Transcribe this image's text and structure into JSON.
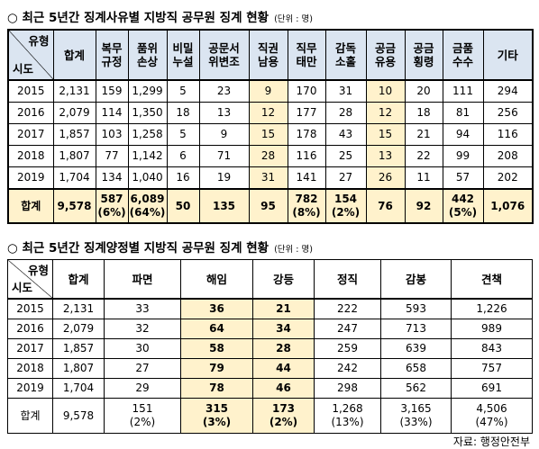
{
  "table1": {
    "title": "○ 최근 5년간 징계사유별 지방직 공무원 징계 현황",
    "unit": "(단위 : 명)",
    "corner": [
      "유형",
      "시도"
    ],
    "columns": [
      [
        "합계"
      ],
      [
        "복무",
        "규정"
      ],
      [
        "품위",
        "손상"
      ],
      [
        "비밀",
        "누설"
      ],
      [
        "공문서",
        "위변조"
      ],
      [
        "직권",
        "남용"
      ],
      [
        "직무",
        "태만"
      ],
      [
        "감독",
        "소홀"
      ],
      [
        "공금",
        "유용"
      ],
      [
        "공금",
        "횡령"
      ],
      [
        "금품",
        "수수"
      ],
      [
        "기타"
      ]
    ],
    "rows": [
      [
        "2015",
        "2,131",
        "159",
        "1,299",
        "5",
        "23",
        "9",
        "170",
        "31",
        "10",
        "20",
        "111",
        "294"
      ],
      [
        "2016",
        "2,079",
        "114",
        "1,350",
        "18",
        "13",
        "12",
        "177",
        "28",
        "12",
        "18",
        "81",
        "256"
      ],
      [
        "2017",
        "1,857",
        "103",
        "1,258",
        "5",
        "9",
        "15",
        "178",
        "43",
        "15",
        "21",
        "94",
        "116"
      ],
      [
        "2018",
        "1,807",
        "77",
        "1,142",
        "6",
        "71",
        "28",
        "116",
        "25",
        "13",
        "22",
        "99",
        "208"
      ],
      [
        "2019",
        "1,704",
        "134",
        "1,040",
        "16",
        "19",
        "31",
        "141",
        "27",
        "26",
        "11",
        "57",
        "202"
      ]
    ],
    "total": [
      [
        "합계"
      ],
      [
        "9,578"
      ],
      [
        "587",
        "(6%)"
      ],
      [
        "6,089",
        "(64%)"
      ],
      [
        "50"
      ],
      [
        "135"
      ],
      [
        "95"
      ],
      [
        "782",
        "(8%)"
      ],
      [
        "154",
        "(2%)"
      ],
      [
        "76"
      ],
      [
        "92"
      ],
      [
        "442",
        "(5%)"
      ],
      [
        "1,076"
      ]
    ]
  },
  "table2": {
    "title": "○ 최근 5년간 징계양정별 지방직 공무원 징계 현황",
    "unit": "(단위 : 명)",
    "corner": [
      "유형",
      "시도"
    ],
    "columns": [
      [
        "합계"
      ],
      [
        "파면"
      ],
      [
        "해임"
      ],
      [
        "강등"
      ],
      [
        "정직"
      ],
      [
        "감봉"
      ],
      [
        "견책"
      ]
    ],
    "rows": [
      [
        "2015",
        "2,131",
        "33",
        "36",
        "21",
        "222",
        "593",
        "1,226"
      ],
      [
        "2016",
        "2,079",
        "32",
        "64",
        "34",
        "247",
        "713",
        "989"
      ],
      [
        "2017",
        "1,857",
        "30",
        "58",
        "28",
        "259",
        "639",
        "843"
      ],
      [
        "2018",
        "1,807",
        "27",
        "79",
        "44",
        "242",
        "658",
        "757"
      ],
      [
        "2019",
        "1,704",
        "29",
        "78",
        "46",
        "298",
        "562",
        "691"
      ]
    ],
    "total": [
      [
        "합계"
      ],
      [
        "9,578"
      ],
      [
        "151",
        "(2%)"
      ],
      [
        "315",
        "(3%)"
      ],
      [
        "173",
        "(2%)"
      ],
      [
        "1,268",
        "(13%)"
      ],
      [
        "3,165",
        "(33%)"
      ],
      [
        "4,506",
        "(47%)"
      ]
    ]
  },
  "source": "자료: 행정안전부"
}
